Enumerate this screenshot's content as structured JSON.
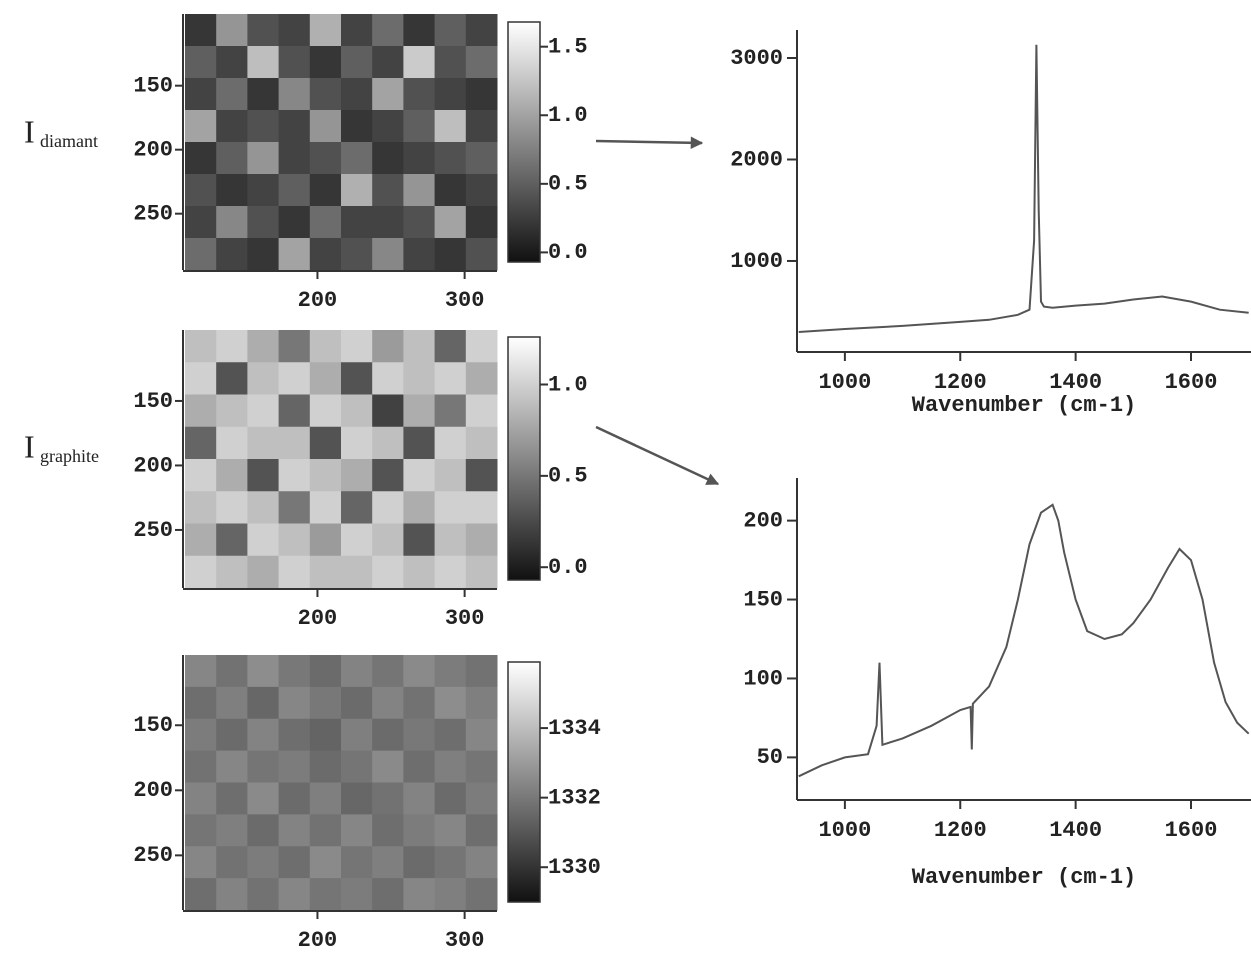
{
  "chart_data": [
    {
      "type": "heatmap",
      "row_label": {
        "main": "I",
        "sub": "diamant"
      },
      "xlim": [
        110,
        322
      ],
      "ylim": [
        94,
        294
      ],
      "xticks": [
        200,
        300
      ],
      "yticks": [
        150,
        200,
        250
      ],
      "clim": [
        -0.07,
        1.68
      ],
      "cticks": [
        {
          "value": 0,
          "label": "0.0"
        },
        0.5,
        {
          "value": 1,
          "label": "1.0"
        },
        1.5
      ],
      "values": [
        [
          0.2,
          0.9,
          0.4,
          0.3,
          1.1,
          0.3,
          0.6,
          0.2,
          0.5,
          0.3
        ],
        [
          0.5,
          0.3,
          1.2,
          0.4,
          0.2,
          0.5,
          0.3,
          1.3,
          0.4,
          0.6
        ],
        [
          0.3,
          0.6,
          0.2,
          0.8,
          0.4,
          0.3,
          1.0,
          0.4,
          0.3,
          0.2
        ],
        [
          1.0,
          0.3,
          0.4,
          0.3,
          0.9,
          0.2,
          0.3,
          0.5,
          1.2,
          0.3
        ],
        [
          0.2,
          0.5,
          0.9,
          0.3,
          0.4,
          0.6,
          0.2,
          0.3,
          0.4,
          0.5
        ],
        [
          0.4,
          0.2,
          0.3,
          0.5,
          0.2,
          1.1,
          0.4,
          0.9,
          0.2,
          0.3
        ],
        [
          0.3,
          0.8,
          0.4,
          0.2,
          0.6,
          0.3,
          0.3,
          0.4,
          1.0,
          0.2
        ],
        [
          0.6,
          0.3,
          0.2,
          1.0,
          0.3,
          0.4,
          0.8,
          0.3,
          0.2,
          0.4
        ]
      ]
    },
    {
      "type": "heatmap",
      "row_label": {
        "main": "I",
        "sub": "graphite"
      },
      "xlim": [
        110,
        322
      ],
      "ylim": [
        95,
        295
      ],
      "xticks": [
        200,
        300
      ],
      "yticks": [
        150,
        200,
        250
      ],
      "clim": [
        -0.07,
        1.26
      ],
      "cticks": [
        {
          "value": 0,
          "label": "0.0"
        },
        0.5,
        {
          "value": 1,
          "label": "1.0"
        }
      ],
      "values": [
        [
          0.9,
          1.0,
          0.8,
          0.5,
          0.9,
          1.0,
          0.7,
          0.9,
          0.4,
          1.0
        ],
        [
          1.0,
          0.3,
          0.9,
          1.0,
          0.8,
          0.3,
          1.0,
          0.9,
          1.0,
          0.8
        ],
        [
          0.8,
          0.9,
          1.0,
          0.4,
          1.0,
          0.9,
          0.2,
          0.8,
          0.5,
          1.0
        ],
        [
          0.4,
          1.0,
          0.9,
          0.9,
          0.3,
          1.0,
          0.9,
          0.3,
          1.0,
          0.9
        ],
        [
          1.0,
          0.8,
          0.3,
          1.0,
          0.9,
          0.8,
          0.3,
          1.0,
          0.9,
          0.3
        ],
        [
          0.9,
          1.0,
          0.9,
          0.5,
          1.0,
          0.4,
          1.0,
          0.8,
          1.0,
          1.0
        ],
        [
          0.8,
          0.4,
          1.0,
          0.9,
          0.7,
          1.0,
          0.9,
          0.3,
          0.9,
          0.8
        ],
        [
          1.0,
          0.9,
          0.8,
          1.0,
          0.9,
          0.9,
          1.0,
          0.9,
          1.0,
          0.9
        ]
      ]
    },
    {
      "type": "heatmap",
      "xlim": [
        110,
        322
      ],
      "ylim": [
        96,
        292
      ],
      "xticks": [
        200,
        300
      ],
      "yticks": [
        150,
        200,
        250
      ],
      "clim": [
        1329,
        1335.9
      ],
      "cticks": [
        1330,
        1332,
        1334
      ],
      "values": [
        [
          1332.4,
          1331.8,
          1332.6,
          1332.0,
          1331.6,
          1332.3,
          1331.9,
          1332.5,
          1332.1,
          1331.8
        ],
        [
          1331.7,
          1332.2,
          1331.5,
          1332.4,
          1332.0,
          1331.6,
          1332.3,
          1331.8,
          1332.6,
          1332.2
        ],
        [
          1332.1,
          1331.6,
          1332.3,
          1331.7,
          1331.4,
          1332.2,
          1331.6,
          1332.0,
          1331.7,
          1332.4
        ],
        [
          1331.8,
          1332.4,
          1331.9,
          1332.1,
          1331.6,
          1331.9,
          1332.5,
          1331.7,
          1332.2,
          1331.9
        ],
        [
          1332.3,
          1331.7,
          1332.5,
          1331.6,
          1332.2,
          1331.5,
          1331.8,
          1332.3,
          1331.6,
          1332.1
        ],
        [
          1331.9,
          1332.2,
          1331.6,
          1332.3,
          1331.8,
          1332.4,
          1331.7,
          1332.1,
          1332.4,
          1331.7
        ],
        [
          1332.4,
          1331.8,
          1332.1,
          1331.7,
          1332.5,
          1331.9,
          1332.2,
          1331.6,
          1331.9,
          1332.3
        ],
        [
          1331.7,
          1332.3,
          1331.8,
          1332.4,
          1331.9,
          1332.1,
          1331.7,
          1332.4,
          1332.2,
          1331.8
        ]
      ]
    },
    {
      "type": "line",
      "xlabel": "Wavenumber (cm-1)",
      "color": "#555555",
      "xlim": [
        917,
        1704
      ],
      "ylim": [
        103,
        3276
      ],
      "xticks": [
        1000,
        1200,
        1400,
        1600
      ],
      "yticks": [
        1000,
        2000,
        3000
      ],
      "x": [
        920,
        1000,
        1100,
        1200,
        1250,
        1300,
        1320,
        1328,
        1332,
        1336,
        1340,
        1345,
        1360,
        1400,
        1450,
        1500,
        1550,
        1600,
        1650,
        1700
      ],
      "values": [
        300,
        330,
        360,
        400,
        420,
        470,
        520,
        1200,
        3130,
        1500,
        600,
        550,
        540,
        560,
        580,
        620,
        650,
        600,
        520,
        490
      ]
    },
    {
      "type": "line",
      "xlabel": "Wavenumber (cm-1)",
      "color": "#555555",
      "xlim": [
        917,
        1704
      ],
      "ylim": [
        23,
        227
      ],
      "xticks": [
        1000,
        1200,
        1400,
        1600
      ],
      "yticks": [
        50,
        100,
        150,
        200
      ],
      "x": [
        920,
        960,
        1000,
        1040,
        1055,
        1060,
        1065,
        1100,
        1150,
        1200,
        1218,
        1220,
        1222,
        1250,
        1280,
        1300,
        1320,
        1340,
        1360,
        1370,
        1380,
        1400,
        1420,
        1450,
        1480,
        1500,
        1530,
        1560,
        1580,
        1600,
        1620,
        1640,
        1660,
        1680,
        1700
      ],
      "values": [
        38,
        45,
        50,
        52,
        70,
        110,
        58,
        62,
        70,
        80,
        82,
        55,
        84,
        95,
        120,
        150,
        185,
        205,
        210,
        200,
        180,
        150,
        130,
        125,
        128,
        135,
        150,
        170,
        182,
        175,
        150,
        110,
        85,
        72,
        65
      ]
    }
  ]
}
